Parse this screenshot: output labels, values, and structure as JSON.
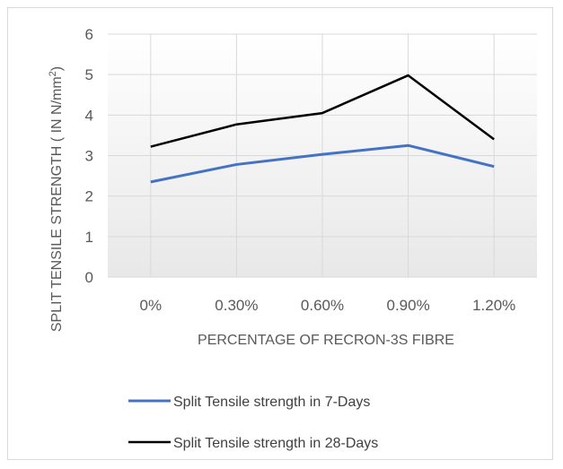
{
  "chart_data": {
    "type": "line",
    "title": "",
    "xlabel": "PERCENTAGE OF RECRON-3S FIBRE",
    "ylabel_prefix": "SPLIT TENSILE STRENGTH ( IN N/mm",
    "ylabel_sup": "2",
    "ylabel_suffix": ")",
    "categories": [
      "0%",
      "0.30%",
      "0.60%",
      "0.90%",
      "1.20%"
    ],
    "ylim": [
      0,
      6
    ],
    "yticks": [
      "0",
      "1",
      "2",
      "3",
      "4",
      "5",
      "6"
    ],
    "grid": true,
    "legend_position": "bottom",
    "series": [
      {
        "name": "Split Tensile strength in 7-Days",
        "values": [
          2.35,
          2.78,
          3.03,
          3.25,
          2.73
        ],
        "color": "#4472c4"
      },
      {
        "name": "Split Tensile strength  in 28-Days",
        "values": [
          3.22,
          3.77,
          4.05,
          4.98,
          3.4
        ],
        "color": "#000000"
      }
    ]
  }
}
